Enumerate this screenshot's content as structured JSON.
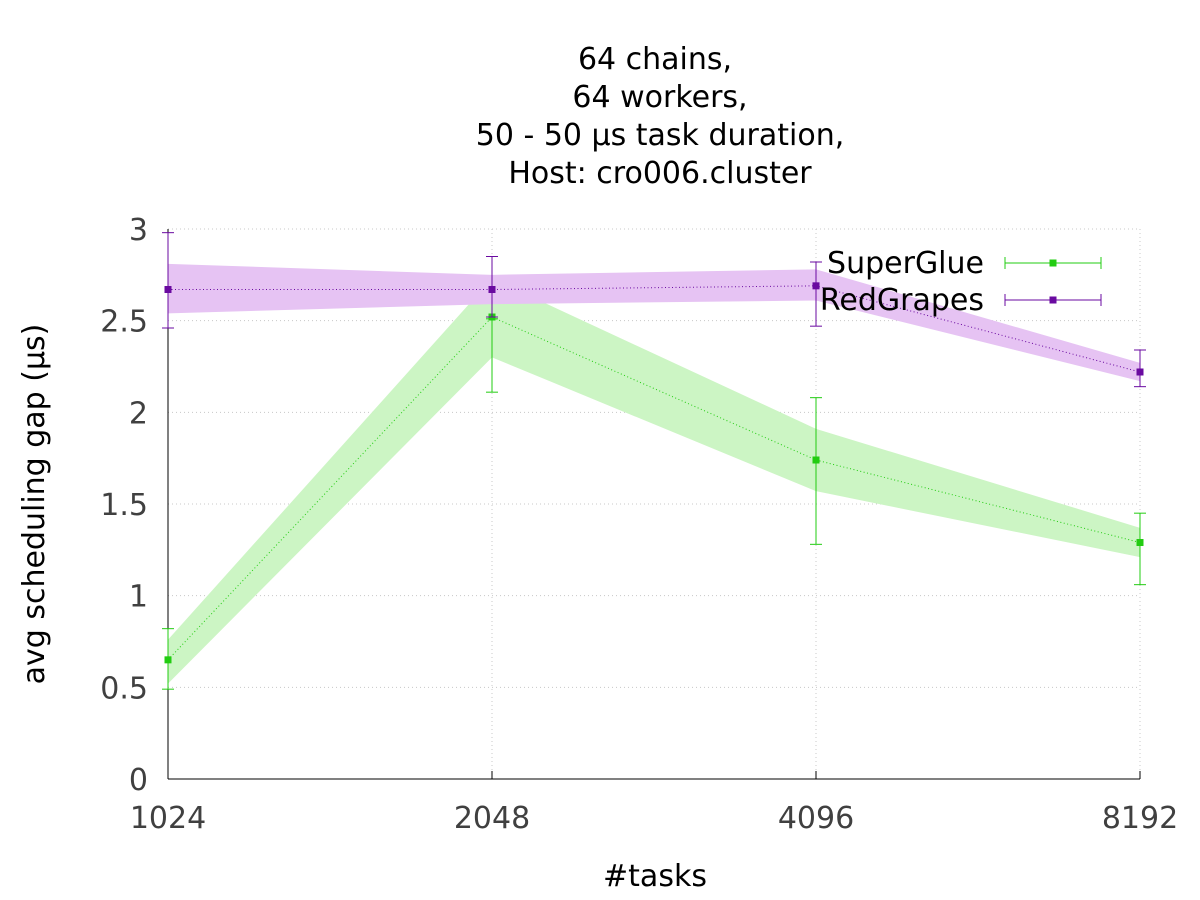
{
  "chart_data": {
    "type": "line",
    "title_lines": [
      "64 chains,",
      "64 workers,",
      "50 - 50 µs task duration,",
      "Host: cro006.cluster"
    ],
    "xlabel": "#tasks",
    "ylabel": "avg scheduling gap (µs)",
    "x": [
      1024,
      2048,
      4096,
      8192
    ],
    "x_scale": "log2",
    "x_tick_labels": [
      "1024",
      "2048",
      "4096",
      "8192"
    ],
    "ylim": [
      0,
      3
    ],
    "y_ticks": [
      0,
      0.5,
      1,
      1.5,
      2,
      2.5,
      3
    ],
    "y_tick_labels": [
      "0",
      "0.5",
      "1",
      "1.5",
      "2",
      "2.5",
      "3"
    ],
    "grid": true,
    "legend_position": "top-right",
    "series": [
      {
        "name": "SuperGlue",
        "color": "#22cc11",
        "band_color": "#ccf5c4",
        "values": [
          0.65,
          2.52,
          1.74,
          1.29
        ],
        "band_low": [
          0.52,
          2.3,
          1.57,
          1.21
        ],
        "band_high": [
          0.76,
          2.73,
          1.91,
          1.37
        ],
        "err_low": [
          0.49,
          2.11,
          1.28,
          1.06
        ],
        "err_high": [
          0.82,
          2.51,
          2.08,
          1.45
        ]
      },
      {
        "name": "RedGrapes",
        "color": "#6a0aa0",
        "band_color": "#e6c3f3",
        "values": [
          2.67,
          2.67,
          2.69,
          2.22
        ],
        "band_low": [
          2.54,
          2.59,
          2.61,
          2.17
        ],
        "band_high": [
          2.81,
          2.75,
          2.78,
          2.27
        ],
        "err_low": [
          2.46,
          2.52,
          2.47,
          2.14
        ],
        "err_high": [
          2.98,
          2.85,
          2.82,
          2.34
        ]
      }
    ]
  }
}
